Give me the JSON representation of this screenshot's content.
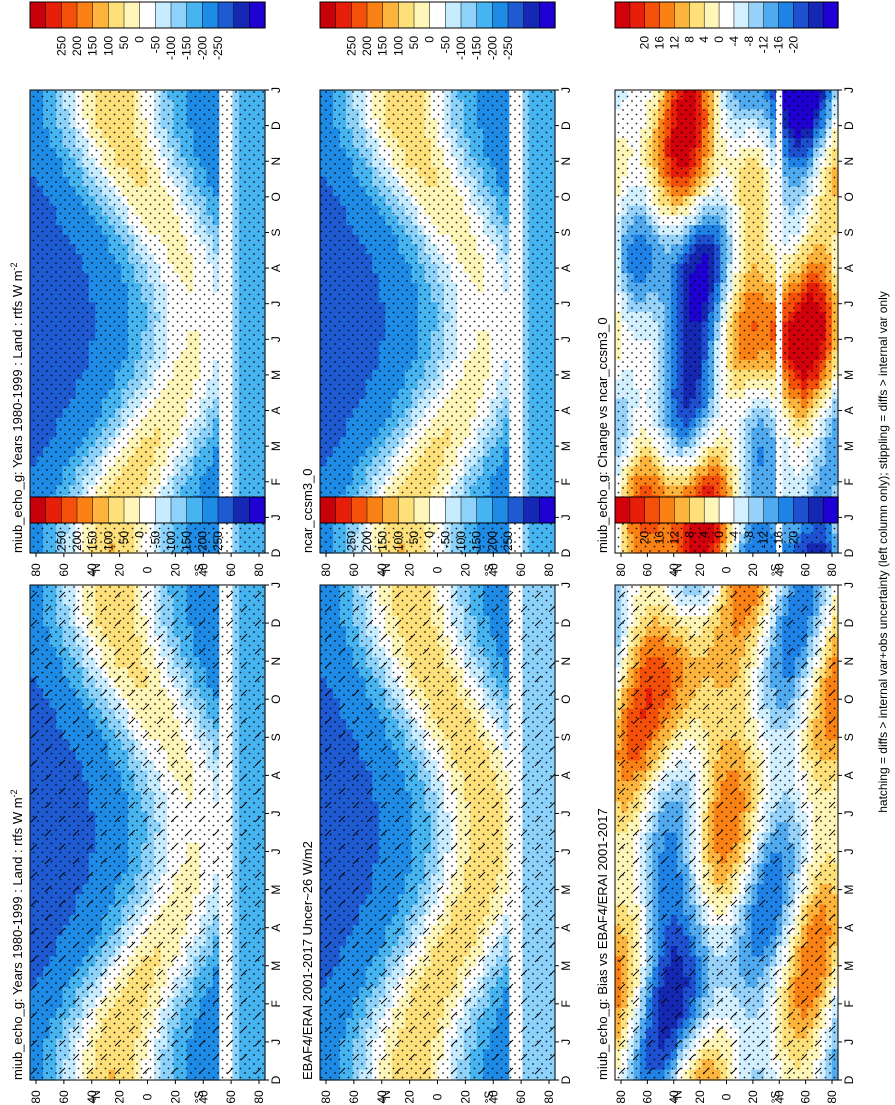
{
  "figure": {
    "footnote": "hatching = diffs > internal var+obs uncertainty (left column only); stippling = diffs > internal var only"
  },
  "chart_data": [
    {
      "id": "p1",
      "type": "heatmap",
      "title": "miub_echo_g: Years 1980-1999 : Land : rtfs W m",
      "title_superscript": "-2",
      "field": "model",
      "months": [
        "D",
        "J",
        "F",
        "M",
        "A",
        "M",
        "J",
        "J",
        "A",
        "S",
        "O",
        "N",
        "D",
        "J"
      ],
      "lat_ticks": [
        "80",
        "60",
        "40",
        "20",
        "0",
        "20",
        "40",
        "60",
        "80"
      ],
      "lat_hemi": [
        "°N",
        "°S"
      ],
      "colorbar": [
        "250",
        "200",
        "150",
        "100",
        "50",
        "0",
        "-50",
        "-100",
        "-150",
        "-200",
        "-250"
      ],
      "hatch": false
    },
    {
      "id": "p2",
      "type": "heatmap",
      "title": "miub_echo_g: Years 1980-1999 : Land : rtfs W m",
      "title_superscript": "-2",
      "field": "model",
      "months": [
        "D",
        "J",
        "F",
        "M",
        "A",
        "M",
        "J",
        "J",
        "A",
        "S",
        "O",
        "N",
        "D",
        "J"
      ],
      "lat_ticks": [
        "80",
        "60",
        "40",
        "20",
        "0",
        "20",
        "40",
        "60",
        "80"
      ],
      "lat_hemi": [
        "°N",
        "°S"
      ],
      "colorbar": [
        "250",
        "200",
        "150",
        "100",
        "50",
        "0",
        "-50",
        "-100",
        "-150",
        "-200",
        "-250"
      ],
      "hatch": true
    },
    {
      "id": "p3",
      "type": "heatmap",
      "title": "ncar_ccsm3_0",
      "title_superscript": "",
      "field": "model",
      "months": [
        "D",
        "J",
        "F",
        "M",
        "A",
        "M",
        "J",
        "J",
        "A",
        "S",
        "O",
        "N",
        "D",
        "J"
      ],
      "lat_ticks": [
        "80",
        "60",
        "40",
        "20",
        "0",
        "20",
        "40",
        "60",
        "80"
      ],
      "lat_hemi": [
        "°N",
        "°S"
      ],
      "colorbar": [
        "250",
        "200",
        "150",
        "100",
        "50",
        "0",
        "-50",
        "-100",
        "-150",
        "-200",
        "-250"
      ],
      "hatch": false
    },
    {
      "id": "p4",
      "type": "heatmap",
      "title": "EBAF4/ERAI 2001-2017 Uncer~26 W/m2",
      "title_superscript": "",
      "field": "obs",
      "months": [
        "D",
        "J",
        "F",
        "M",
        "A",
        "M",
        "J",
        "J",
        "A",
        "S",
        "O",
        "N",
        "D",
        "J"
      ],
      "lat_ticks": [
        "80",
        "60",
        "40",
        "20",
        "0",
        "20",
        "40",
        "60",
        "80"
      ],
      "lat_hemi": [
        "°N",
        "°S"
      ],
      "colorbar": [
        "250",
        "200",
        "150",
        "100",
        "50",
        "0",
        "-50",
        "-100",
        "-150",
        "-200",
        "-250"
      ],
      "hatch": true
    },
    {
      "id": "p5",
      "type": "heatmap",
      "title": "miub_echo_g: Change vs ncar_ccsm3_0",
      "title_superscript": "",
      "field": "change",
      "months": [
        "D",
        "J",
        "F",
        "M",
        "A",
        "M",
        "J",
        "J",
        "A",
        "S",
        "O",
        "N",
        "D",
        "J"
      ],
      "lat_ticks": [
        "80",
        "60",
        "40",
        "20",
        "0",
        "20",
        "40",
        "60",
        "80"
      ],
      "lat_hemi": [
        "°N",
        "°S"
      ],
      "colorbar": [
        "20",
        "16",
        "12",
        "8",
        "4",
        "0",
        "-4",
        "-8",
        "-12",
        "-16",
        "-20"
      ],
      "hatch": false
    },
    {
      "id": "p6",
      "type": "heatmap",
      "title": "miub_echo_g: Bias vs EBAF4/ERAI 2001-2017",
      "title_superscript": "",
      "field": "bias",
      "months": [
        "D",
        "J",
        "F",
        "M",
        "A",
        "M",
        "J",
        "J",
        "A",
        "S",
        "O",
        "N",
        "D",
        "J"
      ],
      "lat_ticks": [
        "80",
        "60",
        "40",
        "20",
        "0",
        "20",
        "40",
        "60",
        "80"
      ],
      "lat_hemi": [
        "°N",
        "°S"
      ],
      "colorbar": [
        "20",
        "16",
        "12",
        "8",
        "4",
        "0",
        "-4",
        "-8",
        "-12",
        "-16",
        "-20"
      ],
      "hatch": true
    }
  ]
}
